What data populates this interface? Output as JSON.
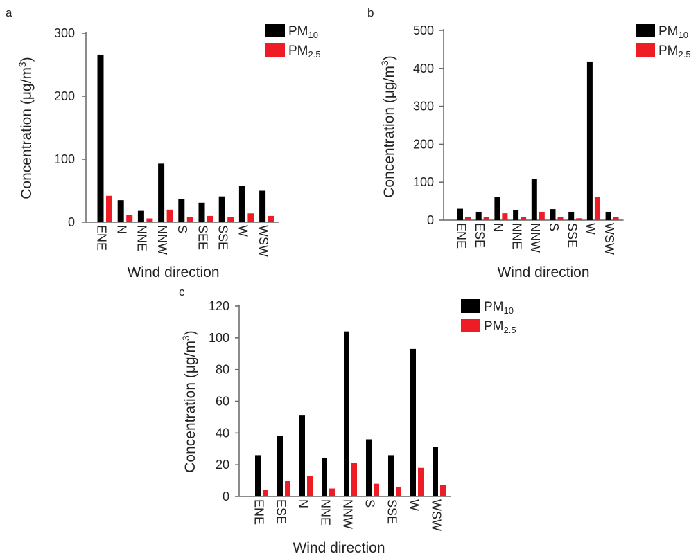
{
  "chart_data": [
    {
      "panel": "a",
      "type": "bar",
      "categories": [
        "ENE",
        "N",
        "NNE",
        "NNW",
        "S",
        "SEE",
        "SSE",
        "W",
        "WSW"
      ],
      "series": [
        {
          "name": "PM10",
          "values": [
            266,
            35,
            18,
            93,
            37,
            31,
            41,
            58,
            50
          ]
        },
        {
          "name": "PM2.5",
          "values": [
            42,
            12,
            6,
            20,
            8,
            10,
            8,
            14,
            10
          ]
        }
      ],
      "xlabel": "Wind direction",
      "ylabel": "Concentration  (μg/m3)",
      "ylim": [
        0,
        300
      ],
      "yticks": [
        0,
        100,
        200,
        300
      ],
      "legend_position": "top-right",
      "grid": false
    },
    {
      "panel": "b",
      "type": "bar",
      "categories": [
        "ENE",
        "ESE",
        "N",
        "NNE",
        "NNW",
        "S",
        "SSE",
        "W",
        "WSW"
      ],
      "series": [
        {
          "name": "PM10",
          "values": [
            30,
            22,
            62,
            27,
            108,
            29,
            22,
            418,
            22
          ]
        },
        {
          "name": "PM2.5",
          "values": [
            9,
            9,
            18,
            9,
            22,
            9,
            5,
            62,
            9
          ]
        }
      ],
      "xlabel": "Wind direction",
      "ylabel": "Concentration  (μg/m3)",
      "ylim": [
        0,
        500
      ],
      "yticks": [
        0,
        100,
        200,
        300,
        400,
        500
      ],
      "legend_position": "top-right",
      "grid": false
    },
    {
      "panel": "c",
      "type": "bar",
      "categories": [
        "ENE",
        "ESE",
        "N",
        "NNE",
        "NNW",
        "S",
        "SSE",
        "W",
        "WSW"
      ],
      "series": [
        {
          "name": "PM10",
          "values": [
            26,
            38,
            51,
            24,
            104,
            36,
            26,
            93,
            31
          ]
        },
        {
          "name": "PM2.5",
          "values": [
            4,
            10,
            13,
            5,
            21,
            8,
            6,
            18,
            7
          ]
        }
      ],
      "xlabel": "Wind direction",
      "ylabel": "Concentration  (μg/m3)",
      "ylim": [
        0,
        120
      ],
      "yticks": [
        0,
        20,
        40,
        60,
        80,
        100,
        120
      ],
      "legend_position": "top-right",
      "grid": false
    }
  ],
  "legend": {
    "pm10_main": "PM",
    "pm10_sub": "10",
    "pm25_main": "PM",
    "pm25_sub": "2.5"
  },
  "ylabel_parts": {
    "main": "Concentration  (μg/m",
    "sup": "3",
    "close": ")"
  },
  "colors": {
    "pm10": "#000000",
    "pm25": "#ee1c25",
    "axis": "#666666"
  }
}
